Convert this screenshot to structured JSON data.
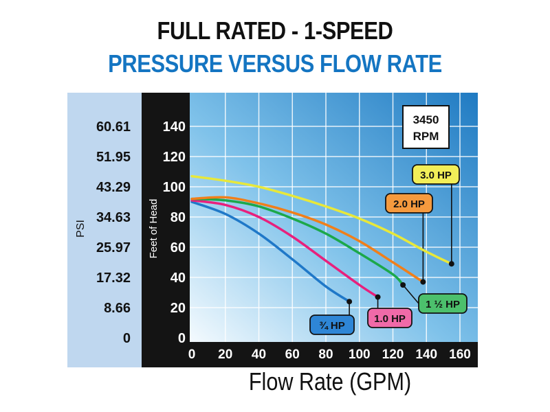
{
  "chart_data": {
    "type": "line",
    "title": "FULL RATED - 1-SPEED",
    "subtitle": "PRESSURE VERSUS FLOW RATE",
    "xlabel": "Flow Rate (GPM)",
    "ylabel": "Feet of Head",
    "y2label": "PSI",
    "xlim": [
      0,
      170
    ],
    "ylim": [
      0,
      160
    ],
    "x_ticks": [
      "0",
      "20",
      "40",
      "60",
      "80",
      "100",
      "120",
      "140",
      "160"
    ],
    "y_ticks": [
      "0",
      "20",
      "40",
      "60",
      "80",
      "100",
      "120",
      "140"
    ],
    "psi_ticks": [
      "0",
      "8.66",
      "17.32",
      "25.97",
      "34.63",
      "43.29",
      "51.95",
      "60.61"
    ],
    "grid": true,
    "annotation": "3450 RPM",
    "series": [
      {
        "name": "¾ HP",
        "color": "#1f78c8",
        "label_color": "#2e86d6",
        "points": [
          [
            0,
            90
          ],
          [
            20,
            82
          ],
          [
            40,
            69
          ],
          [
            60,
            52
          ],
          [
            80,
            34
          ],
          [
            94,
            24
          ]
        ]
      },
      {
        "name": "1.0 HP",
        "color": "#e8207c",
        "label_color": "#f06aa8",
        "points": [
          [
            0,
            91
          ],
          [
            20,
            88
          ],
          [
            40,
            80
          ],
          [
            60,
            67
          ],
          [
            80,
            51
          ],
          [
            100,
            35
          ],
          [
            111,
            27
          ]
        ]
      },
      {
        "name": "1 ½ HP",
        "color": "#1ca84a",
        "label_color": "#4cc06c",
        "points": [
          [
            0,
            92
          ],
          [
            20,
            91
          ],
          [
            40,
            87
          ],
          [
            60,
            79
          ],
          [
            80,
            69
          ],
          [
            100,
            56
          ],
          [
            120,
            42
          ],
          [
            126,
            35
          ]
        ]
      },
      {
        "name": "2.0 HP",
        "color": "#f07f1a",
        "label_color": "#f59a3e",
        "points": [
          [
            0,
            92
          ],
          [
            20,
            93
          ],
          [
            40,
            89
          ],
          [
            60,
            83
          ],
          [
            80,
            75
          ],
          [
            100,
            64
          ],
          [
            120,
            50
          ],
          [
            138,
            37
          ]
        ]
      },
      {
        "name": "3.0 HP",
        "color": "#e8e83a",
        "label_color": "#f2ee58",
        "points": [
          [
            0,
            107
          ],
          [
            20,
            104
          ],
          [
            40,
            100
          ],
          [
            60,
            94
          ],
          [
            80,
            87
          ],
          [
            100,
            79
          ],
          [
            120,
            69
          ],
          [
            140,
            57
          ],
          [
            155,
            49
          ]
        ]
      }
    ]
  }
}
